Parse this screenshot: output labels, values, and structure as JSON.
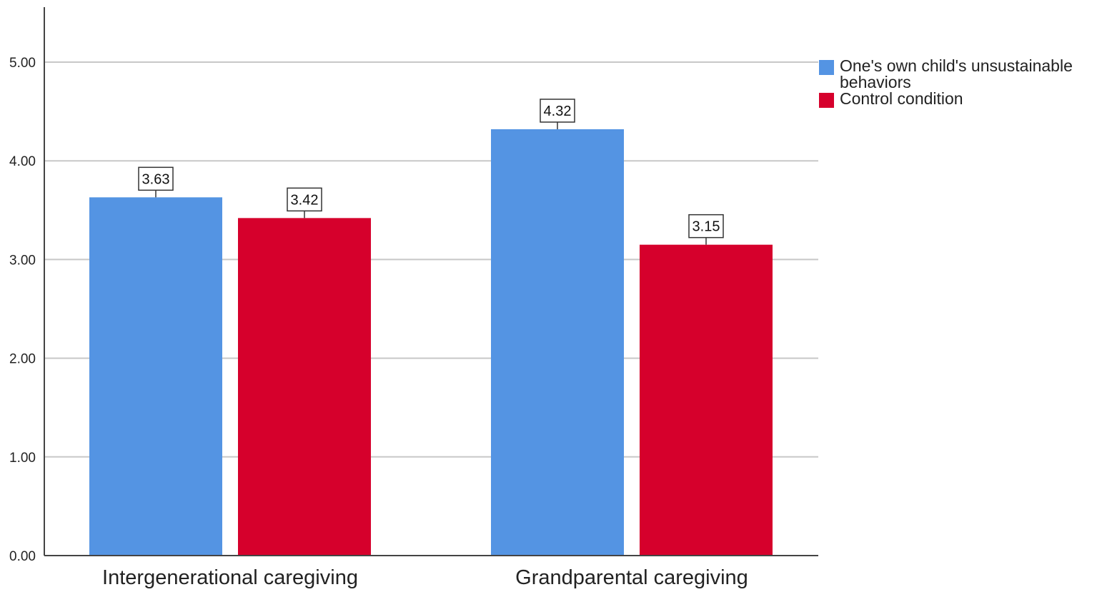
{
  "chart_data": {
    "type": "bar",
    "categories": [
      "Intergenerational caregiving",
      "Grandparental caregiving"
    ],
    "series": [
      {
        "name": "One's own child's unsustainable behaviors",
        "color": "#5494e3",
        "values": [
          3.63,
          4.32
        ],
        "labels": [
          "3.63",
          "4.32"
        ]
      },
      {
        "name": "Control condition",
        "color": "#d6002c",
        "values": [
          3.42,
          3.15
        ],
        "labels": [
          "3.42",
          "3.15"
        ]
      }
    ],
    "ylim": [
      0,
      5.5
    ],
    "yticks": [
      0,
      1,
      2,
      3,
      4,
      5
    ],
    "ytick_labels": [
      "0.00",
      "1.00",
      "2.00",
      "3.00",
      "4.00",
      "5.00"
    ],
    "grid": true,
    "legend": {
      "placement": "top-right",
      "entries": [
        {
          "lines": [
            "One's own child's unsustainable",
            "behaviors"
          ],
          "color": "#5494e3"
        },
        {
          "lines": [
            "Control condition"
          ],
          "color": "#d6002c"
        }
      ]
    },
    "title": "",
    "xlabel": "",
    "ylabel": ""
  }
}
